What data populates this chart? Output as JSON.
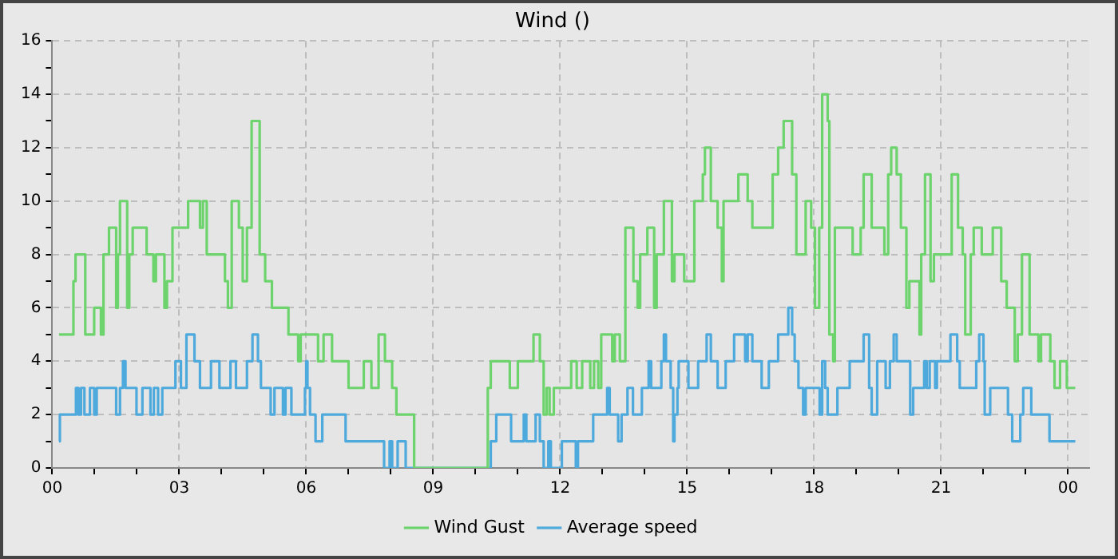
{
  "chart_data": {
    "type": "step",
    "title": "Wind ()",
    "xlim": [
      0,
      24.5
    ],
    "ylim": [
      0,
      16
    ],
    "xticks": [
      {
        "value": 0,
        "label": "00"
      },
      {
        "value": 1,
        "label": null
      },
      {
        "value": 2,
        "label": null
      },
      {
        "value": 3,
        "label": "03"
      },
      {
        "value": 4,
        "label": null
      },
      {
        "value": 5,
        "label": null
      },
      {
        "value": 6,
        "label": "06"
      },
      {
        "value": 7,
        "label": null
      },
      {
        "value": 8,
        "label": null
      },
      {
        "value": 9,
        "label": "09"
      },
      {
        "value": 10,
        "label": null
      },
      {
        "value": 11,
        "label": null
      },
      {
        "value": 12,
        "label": "12"
      },
      {
        "value": 13,
        "label": null
      },
      {
        "value": 14,
        "label": null
      },
      {
        "value": 15,
        "label": "15"
      },
      {
        "value": 16,
        "label": null
      },
      {
        "value": 17,
        "label": null
      },
      {
        "value": 18,
        "label": "18"
      },
      {
        "value": 19,
        "label": null
      },
      {
        "value": 20,
        "label": null
      },
      {
        "value": 21,
        "label": "21"
      },
      {
        "value": 22,
        "label": null
      },
      {
        "value": 23,
        "label": null
      },
      {
        "value": 24,
        "label": "00"
      }
    ],
    "yticks": [
      0,
      {
        "value": 1,
        "label": null
      },
      2,
      {
        "value": 3,
        "label": null
      },
      4,
      {
        "value": 5,
        "label": null
      },
      6,
      {
        "value": 7,
        "label": null
      },
      8,
      {
        "value": 9,
        "label": null
      },
      10,
      {
        "value": 11,
        "label": null
      },
      12,
      {
        "value": 13,
        "label": null
      },
      14,
      {
        "value": 15,
        "label": null
      },
      16
    ],
    "grid": true,
    "legend": "bottom",
    "line_style": "solid",
    "marker": "none",
    "series": [
      {
        "name": "Wind Gust",
        "color": "#6dd46d",
        "x": [
          0.16,
          0.5,
          0.55,
          0.78,
          0.99,
          1.15,
          1.21,
          1.34,
          1.51,
          1.55,
          1.6,
          1.77,
          1.82,
          1.9,
          2.23,
          2.39,
          2.45,
          2.65,
          2.71,
          2.84,
          3.21,
          3.49,
          3.56,
          3.65,
          4.08,
          4.15,
          4.24,
          4.41,
          4.5,
          4.6,
          4.71,
          4.9,
          5.03,
          5.19,
          5.58,
          5.81,
          5.87,
          6.28,
          6.41,
          6.61,
          7.0,
          7.36,
          7.54,
          7.71,
          7.86,
          8.03,
          8.13,
          8.55,
          10.29,
          10.36,
          10.81,
          11.0,
          11.37,
          11.52,
          11.61,
          11.68,
          11.75,
          11.85,
          12.26,
          12.39,
          12.52,
          12.71,
          12.8,
          12.9,
          12.97,
          13.23,
          13.29,
          13.41,
          13.54,
          13.73,
          13.83,
          13.89,
          14.06,
          14.22,
          14.28,
          14.45,
          14.64,
          14.7,
          14.93,
          15.17,
          15.37,
          15.42,
          15.56,
          15.72,
          15.82,
          15.86,
          16.21,
          16.43,
          16.54,
          17.02,
          17.15,
          17.28,
          17.48,
          17.58,
          17.8,
          17.93,
          18.02,
          18.12,
          18.19,
          18.32,
          18.36,
          18.45,
          18.49,
          18.91,
          19.1,
          19.17,
          19.36,
          19.66,
          19.75,
          19.82,
          19.95,
          20.05,
          20.18,
          20.25,
          20.49,
          20.53,
          20.62,
          20.75,
          20.83,
          21.25,
          21.4,
          21.51,
          21.57,
          21.7,
          21.77,
          21.96,
          22.22,
          22.42,
          22.55,
          22.74,
          22.81,
          22.91,
          23.09,
          23.3,
          23.36,
          23.58,
          23.68,
          23.81,
          23.97,
          24.17
        ],
        "values": [
          5,
          7,
          8,
          5,
          6,
          5,
          8,
          9,
          6,
          8,
          10,
          6,
          8,
          9,
          8,
          7,
          8,
          6,
          7,
          9,
          10,
          9,
          10,
          8,
          7,
          6,
          10,
          9,
          7,
          9,
          13,
          8,
          7,
          6,
          5,
          4,
          5,
          4,
          5,
          4,
          3,
          4,
          3,
          5,
          4,
          3,
          2,
          0,
          3,
          4,
          3,
          4,
          5,
          4,
          2,
          3,
          2,
          3,
          4,
          3,
          4,
          3,
          4,
          3,
          5,
          4,
          5,
          4,
          9,
          7,
          6,
          8,
          9,
          6,
          8,
          10,
          7,
          8,
          7,
          10,
          11,
          12,
          10,
          9,
          7,
          10,
          11,
          10,
          9,
          11,
          12,
          13,
          11,
          8,
          10,
          9,
          6,
          9,
          14,
          13,
          5,
          4,
          9,
          8,
          9,
          11,
          9,
          8,
          11,
          12,
          11,
          9,
          6,
          7,
          5,
          8,
          11,
          7,
          8,
          11,
          9,
          8,
          5,
          8,
          9,
          8,
          9,
          7,
          6,
          4,
          5,
          8,
          5,
          4,
          5,
          4,
          3,
          4,
          3,
          3
        ]
      },
      {
        "name": "Average speed",
        "color": "#4ea9dc",
        "x": [
          0.16,
          0.18,
          0.56,
          0.62,
          0.68,
          0.76,
          0.89,
          0.99,
          1.05,
          1.51,
          1.6,
          1.67,
          1.73,
          1.99,
          2.13,
          2.32,
          2.4,
          2.5,
          2.6,
          2.91,
          3.04,
          3.17,
          3.36,
          3.49,
          3.75,
          3.95,
          4.21,
          4.34,
          4.6,
          4.73,
          4.86,
          4.93,
          5.16,
          5.25,
          5.45,
          5.51,
          5.65,
          5.97,
          6.0,
          6.03,
          6.09,
          6.22,
          6.38,
          6.93,
          7.84,
          7.97,
          8.03,
          8.16,
          8.35,
          10.36,
          10.49,
          10.84,
          11.14,
          11.2,
          11.42,
          11.52,
          11.61,
          11.72,
          11.78,
          12.04,
          12.37,
          12.42,
          12.78,
          13.11,
          13.17,
          13.37,
          13.45,
          13.59,
          13.72,
          13.93,
          14.09,
          14.15,
          14.39,
          14.45,
          14.5,
          14.61,
          14.67,
          14.7,
          14.77,
          14.8,
          15.03,
          15.26,
          15.46,
          15.56,
          15.72,
          15.91,
          16.11,
          16.37,
          16.43,
          16.54,
          16.76,
          16.93,
          17.15,
          17.39,
          17.48,
          17.54,
          17.63,
          17.74,
          17.8,
          18.13,
          18.19,
          18.26,
          18.32,
          18.55,
          18.84,
          19.17,
          19.3,
          19.36,
          19.49,
          19.69,
          19.79,
          19.88,
          19.95,
          20.27,
          20.34,
          20.6,
          20.66,
          20.73,
          20.86,
          20.9,
          21.22,
          21.38,
          21.44,
          21.83,
          21.9,
          22.0,
          22.03,
          22.16,
          22.58,
          22.68,
          22.87,
          22.94,
          23.13,
          23.56,
          24.17
        ],
        "values": [
          1,
          2,
          3,
          2,
          3,
          2,
          3,
          2,
          3,
          2,
          3,
          4,
          3,
          2,
          3,
          2,
          3,
          2,
          3,
          4,
          3,
          5,
          4,
          3,
          4,
          3,
          4,
          3,
          4,
          5,
          4,
          3,
          2,
          3,
          2,
          3,
          2,
          3,
          4,
          3,
          2,
          1,
          2,
          1,
          0,
          1,
          0,
          1,
          0,
          1,
          2,
          1,
          2,
          1,
          2,
          1,
          0,
          1,
          0,
          1,
          0,
          1,
          2,
          3,
          2,
          1,
          2,
          3,
          2,
          3,
          4,
          3,
          4,
          5,
          4,
          3,
          1,
          2,
          3,
          4,
          3,
          4,
          5,
          4,
          3,
          4,
          5,
          4,
          5,
          4,
          3,
          4,
          5,
          6,
          5,
          4,
          3,
          2,
          3,
          2,
          4,
          3,
          2,
          3,
          4,
          5,
          3,
          2,
          4,
          3,
          4,
          5,
          4,
          2,
          3,
          4,
          3,
          4,
          3,
          4,
          5,
          4,
          3,
          4,
          5,
          4,
          2,
          3,
          2,
          1,
          2,
          3,
          2,
          1,
          1
        ]
      }
    ]
  }
}
